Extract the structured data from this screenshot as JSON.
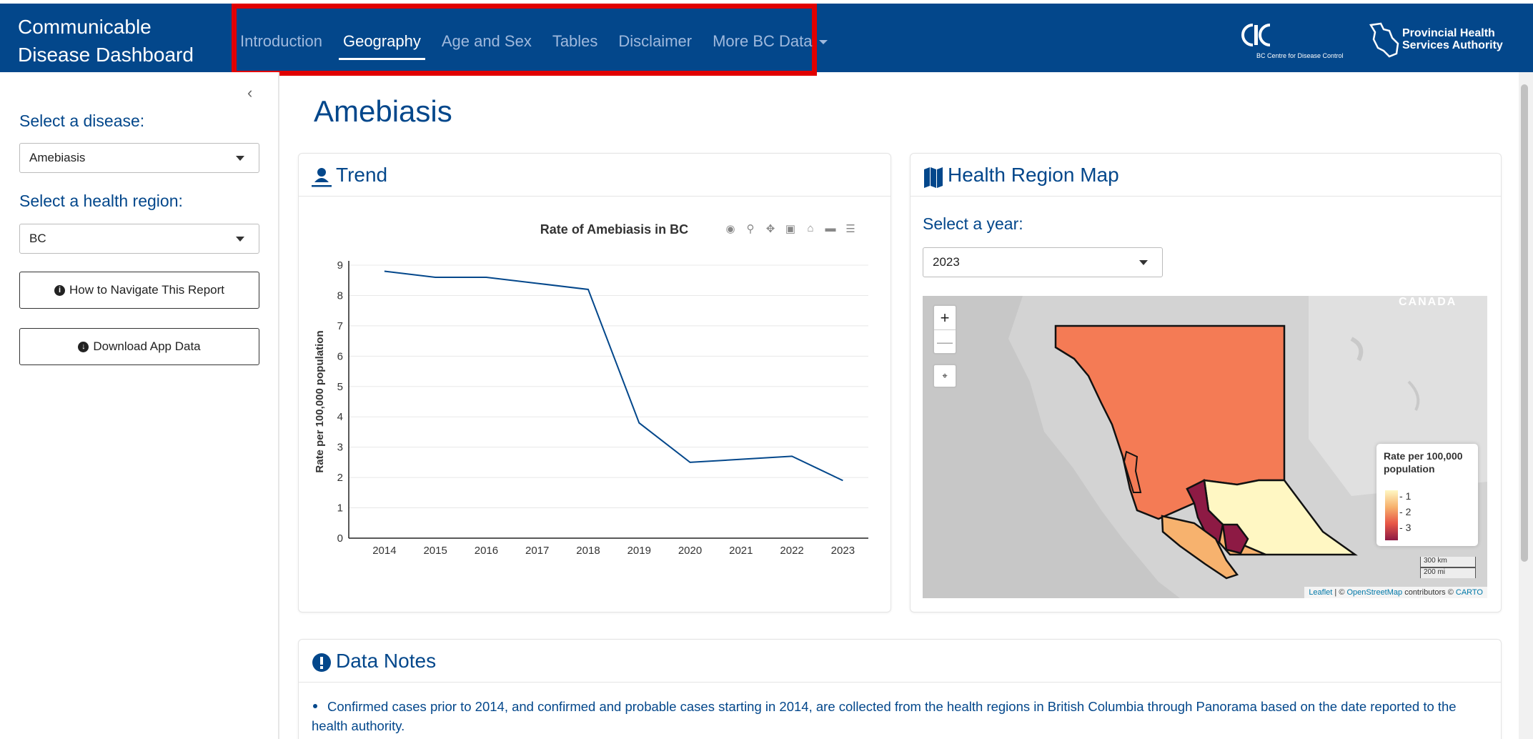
{
  "navbar": {
    "brand_line1": "Communicable",
    "brand_line2": "Disease Dashboard",
    "items": [
      {
        "label": "Introduction"
      },
      {
        "label": "Geography"
      },
      {
        "label": "Age and Sex"
      },
      {
        "label": "Tables"
      },
      {
        "label": "Disclaimer"
      },
      {
        "label": "More BC Data"
      }
    ],
    "active": "Geography",
    "logo_bccdc_caption": "BC Centre for Disease Control",
    "logo_phsa_line1": "Provincial Health",
    "logo_phsa_line2": "Services Authority"
  },
  "sidebar": {
    "disease_label": "Select a disease:",
    "disease_value": "Amebiasis",
    "region_label": "Select a health region:",
    "region_value": "BC",
    "navigate_button": "How to Navigate This Report",
    "download_button": "Download App Data"
  },
  "main": {
    "title": "Amebiasis",
    "trend_title": "Trend",
    "map_title": "Health Region Map",
    "year_label": "Select a year:",
    "year_value": "2023",
    "notes_title": "Data Notes",
    "note_1": "Confirmed cases prior to 2014, and confirmed and probable cases starting in 2014, are collected from the health regions in British Columbia through Panorama based on the date reported to the health authority."
  },
  "map": {
    "canada_label": "CANADA",
    "zoom_in": "+",
    "zoom_out": "—",
    "legend_title_1": "Rate per 100,000",
    "legend_title_2": "population",
    "legend_ticks": [
      "1",
      "2",
      "3"
    ],
    "scale_km": "300 km",
    "scale_mi": "200 mi",
    "attribution_leaflet": "Leaflet",
    "attribution_sep": " | © ",
    "attribution_osm": "OpenStreetMap",
    "attribution_contrib": " contributors © ",
    "attribution_carto": "CARTO",
    "colors": {
      "low": "#fff7c3",
      "mid": "#f7b26e",
      "high": "#f47b55",
      "max": "#8d1a44"
    }
  },
  "colors": {
    "brand": "#03478b",
    "highlight": "#e10000",
    "line": "#03478b"
  },
  "chart_data": {
    "type": "line",
    "title": "Rate of Amebiasis in BC",
    "xlabel": "",
    "ylabel": "Rate per 100,000 population",
    "x": [
      2014,
      2015,
      2016,
      2017,
      2018,
      2019,
      2020,
      2021,
      2022,
      2023
    ],
    "values": [
      8.8,
      8.6,
      8.6,
      8.4,
      8.2,
      3.8,
      2.5,
      2.6,
      2.7,
      1.9
    ],
    "ylim": [
      0,
      9
    ],
    "yticks": [
      0,
      1,
      2,
      3,
      4,
      5,
      6,
      7,
      8,
      9
    ],
    "grid": true
  }
}
